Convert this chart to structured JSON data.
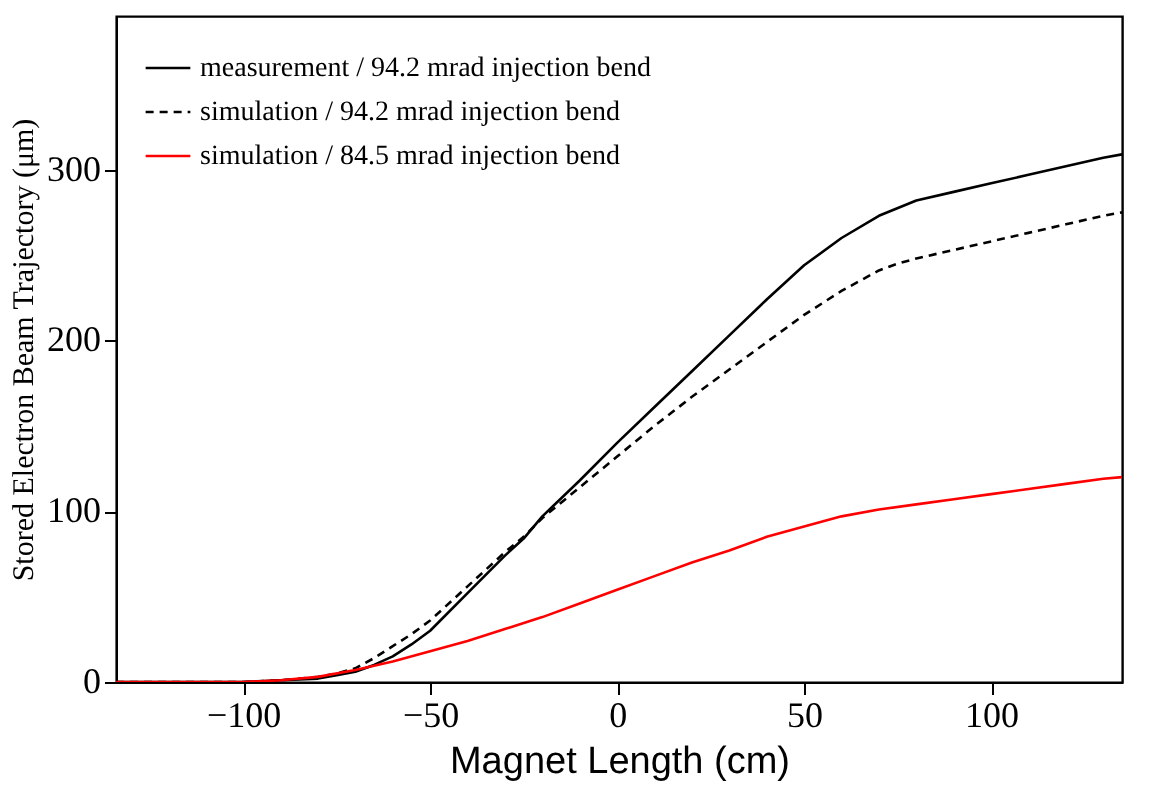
{
  "chart_data": {
    "type": "line",
    "xlabel": "Magnet Length  (cm)",
    "ylabel": "Stored Electron Beam Trajectory (μm)",
    "xlim": [
      -134,
      135
    ],
    "ylim": [
      0,
      390
    ],
    "xticks": [
      -100,
      -50,
      0,
      50,
      100
    ],
    "yticks": [
      0,
      100,
      200,
      300
    ],
    "grid": false,
    "legend": "top left",
    "marker": "none",
    "series": [
      {
        "name": "measurement / 94.2 mrad injection bend",
        "color": "#000000",
        "line_style": "solid",
        "x": [
          -134,
          -110,
          -100,
          -90,
          -80,
          -75,
          -70,
          -65,
          -60,
          -55,
          -50,
          -40,
          -30,
          -25,
          -20,
          -10,
          0,
          10,
          20,
          30,
          40,
          50,
          60,
          70,
          80,
          90,
          100,
          110,
          120,
          130,
          135
        ],
        "values": [
          0,
          0,
          0,
          1,
          2,
          4,
          6,
          10,
          15,
          22,
          30,
          52,
          74,
          84,
          97,
          118,
          140,
          161,
          182,
          203,
          224,
          244,
          260,
          273,
          282,
          287,
          292,
          297,
          302,
          307,
          309
        ]
      },
      {
        "name": "simulation / 94.2 mrad injection bend",
        "color": "#000000",
        "line_style": "dashed",
        "x": [
          -134,
          -110,
          -100,
          -90,
          -80,
          -75,
          -70,
          -65,
          -60,
          -55,
          -50,
          -40,
          -30,
          -25,
          -20,
          -10,
          0,
          10,
          20,
          30,
          40,
          50,
          60,
          70,
          75,
          80,
          90,
          100,
          110,
          120,
          130,
          135
        ],
        "values": [
          0,
          0,
          0,
          1,
          3,
          5,
          8,
          14,
          21,
          28,
          36,
          56,
          76,
          85,
          96,
          114,
          132,
          150,
          167,
          183,
          199,
          215,
          229,
          241,
          245,
          248,
          253,
          258,
          263,
          268,
          273,
          275
        ]
      },
      {
        "name": "simulation / 84.5 mrad injection bend",
        "color": "#ff0000",
        "line_style": "solid",
        "x": [
          -134,
          -110,
          -100,
          -90,
          -80,
          -70,
          -60,
          -50,
          -40,
          -30,
          -20,
          -10,
          0,
          10,
          20,
          30,
          40,
          50,
          60,
          70,
          80,
          90,
          100,
          110,
          120,
          130,
          135
        ],
        "values": [
          0,
          0,
          0,
          1,
          3,
          7,
          12,
          18,
          24,
          31,
          38,
          46,
          54,
          62,
          70,
          77,
          85,
          91,
          97,
          101,
          104,
          107,
          110,
          113,
          116,
          119,
          120
        ]
      }
    ]
  }
}
